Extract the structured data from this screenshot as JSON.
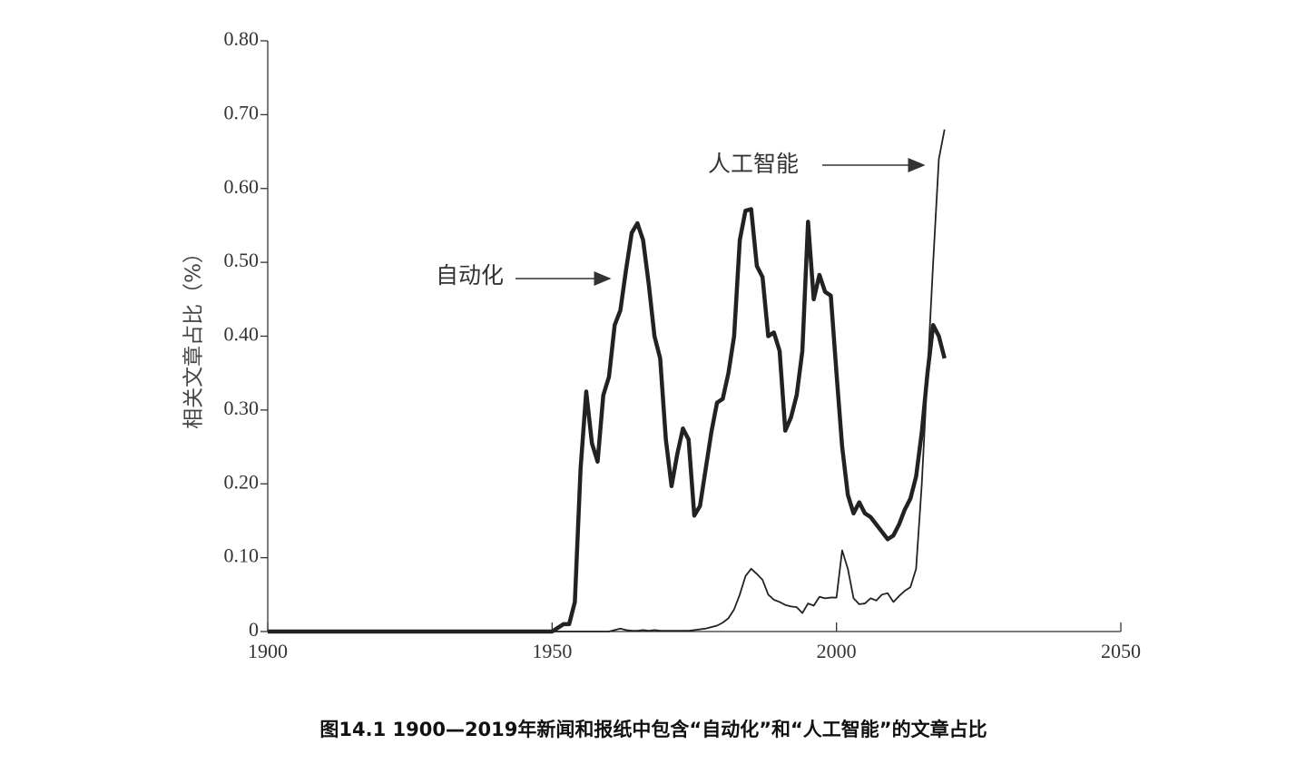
{
  "chart_data": {
    "type": "line",
    "title": "图14.1 1900—2019年新闻和报纸中包含“自动化”和“人工智能”的文章占比",
    "y_label": "相关文章占比（%）",
    "x": [
      1900,
      1950,
      1951,
      1952,
      1953,
      1954,
      1955,
      1956,
      1957,
      1958,
      1959,
      1960,
      1961,
      1962,
      1963,
      1964,
      1965,
      1966,
      1967,
      1968,
      1969,
      1970,
      1971,
      1972,
      1973,
      1974,
      1975,
      1976,
      1977,
      1978,
      1979,
      1980,
      1981,
      1982,
      1983,
      1984,
      1985,
      1986,
      1987,
      1988,
      1989,
      1990,
      1991,
      1992,
      1993,
      1994,
      1995,
      1996,
      1997,
      1998,
      1999,
      2000,
      2001,
      2002,
      2003,
      2004,
      2005,
      2006,
      2007,
      2008,
      2009,
      2010,
      2011,
      2012,
      2013,
      2014,
      2015,
      2016,
      2017,
      2018,
      2019
    ],
    "series": [
      {
        "name": "自动化",
        "color": "#222222",
        "values": [
          0,
          0,
          0.005,
          0.01,
          0.01,
          0.04,
          0.22,
          0.325,
          0.255,
          0.23,
          0.32,
          0.345,
          0.415,
          0.435,
          0.49,
          0.54,
          0.553,
          0.53,
          0.47,
          0.4,
          0.37,
          0.26,
          0.197,
          0.24,
          0.275,
          0.26,
          0.157,
          0.17,
          0.22,
          0.27,
          0.31,
          0.315,
          0.35,
          0.4,
          0.53,
          0.57,
          0.572,
          0.495,
          0.48,
          0.4,
          0.405,
          0.38,
          0.272,
          0.29,
          0.32,
          0.38,
          0.555,
          0.45,
          0.483,
          0.46,
          0.455,
          0.35,
          0.25,
          0.185,
          0.16,
          0.175,
          0.16,
          0.155,
          0.145,
          0.135,
          0.125,
          0.13,
          0.145,
          0.165,
          0.18,
          0.21,
          0.27,
          0.35,
          0.415,
          0.4,
          0.37
        ]
      },
      {
        "name": "人工智能",
        "color": "#222222",
        "values": [
          0,
          0,
          0,
          0,
          0,
          0,
          0,
          0,
          0,
          0,
          0,
          0,
          0.002,
          0.004,
          0.002,
          0.001,
          0.001,
          0.002,
          0.001,
          0.002,
          0.001,
          0.001,
          0.001,
          0.001,
          0.001,
          0.001,
          0.002,
          0.003,
          0.004,
          0.006,
          0.008,
          0.012,
          0.018,
          0.03,
          0.05,
          0.075,
          0.085,
          0.078,
          0.07,
          0.05,
          0.043,
          0.04,
          0.036,
          0.034,
          0.033,
          0.025,
          0.038,
          0.035,
          0.047,
          0.045,
          0.046,
          0.046,
          0.11,
          0.085,
          0.045,
          0.037,
          0.038,
          0.045,
          0.042,
          0.05,
          0.052,
          0.04,
          0.048,
          0.055,
          0.06,
          0.085,
          0.2,
          0.35,
          0.5,
          0.64,
          0.68
        ]
      }
    ],
    "xlim": [
      1900,
      2050
    ],
    "xticks": [
      1900,
      1950,
      2000,
      2050
    ],
    "ylim": [
      0,
      0.8
    ],
    "yticks": [
      0,
      {
        "value": 0.1,
        "label": "0.10"
      },
      {
        "value": 0.2,
        "label": "0.20"
      },
      {
        "value": 0.3,
        "label": "0.30"
      },
      {
        "value": 0.4,
        "label": "0.40"
      },
      {
        "value": 0.5,
        "label": "0.50"
      },
      {
        "value": 0.6,
        "label": "0.60"
      },
      {
        "value": 0.7,
        "label": "0.70"
      },
      {
        "value": 0.8,
        "label": "0.80"
      }
    ]
  }
}
